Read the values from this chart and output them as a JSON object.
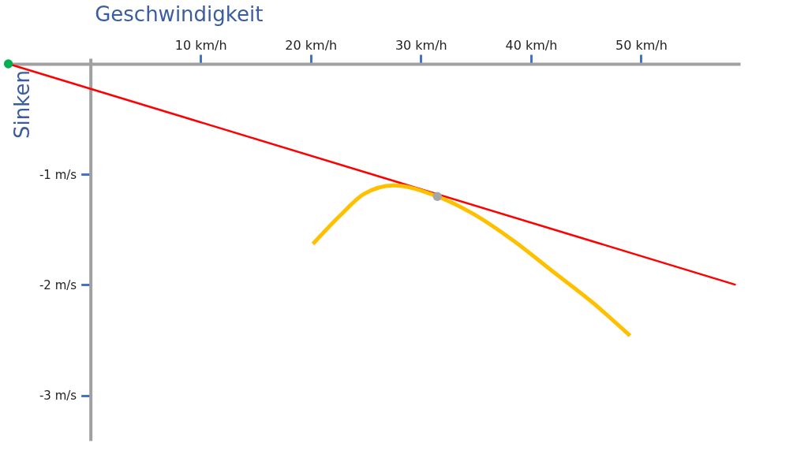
{
  "chart_data": {
    "type": "line",
    "xlabel": "Geschwindigkeit",
    "ylabel": "Sinken",
    "xlim": [
      -7.5,
      59
    ],
    "ylim": [
      -3.41,
      0.05
    ],
    "xticks": [
      {
        "value": 10,
        "label": "10 km/h"
      },
      {
        "value": 20,
        "label": "20 km/h"
      },
      {
        "value": 30,
        "label": "30 km/h"
      },
      {
        "value": 40,
        "label": "40 km/h"
      },
      {
        "value": 50,
        "label": "50 km/h"
      }
    ],
    "yticks": [
      {
        "value": -1,
        "label": "-1 m/s"
      },
      {
        "value": -2,
        "label": "-2 m/s"
      },
      {
        "value": -3,
        "label": "-3 m/s"
      }
    ],
    "series": [
      {
        "color": "#ff0000",
        "x": [
          -7.46,
          58.6
        ],
        "values": [
          0,
          -2.0
        ]
      },
      {
        "color": "#ffc000",
        "x": [
          20.2,
          22.7,
          24.8,
          27.5,
          31.5,
          34.8,
          38.4,
          42.0,
          45.6,
          49.0
        ],
        "values": [
          -1.63,
          -1.37,
          -1.18,
          -1.1,
          -1.2,
          -1.36,
          -1.6,
          -1.88,
          -2.16,
          -2.46
        ]
      },
      {
        "type": "scatter",
        "color": "#00b050",
        "x": [
          -7.46
        ],
        "values": [
          0
        ]
      },
      {
        "type": "scatter",
        "color": "#a6a6a6",
        "x": [
          31.5
        ],
        "values": [
          -1.2
        ]
      }
    ]
  }
}
